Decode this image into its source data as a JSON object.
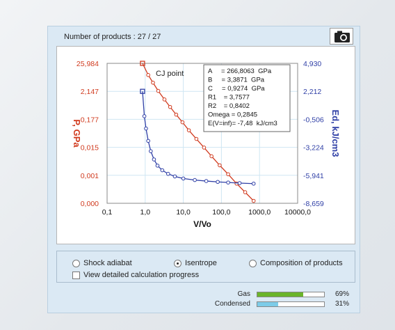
{
  "header": {
    "title": "Number of products : 27 / 27"
  },
  "icons": {
    "camera": "camera-icon"
  },
  "colors": {
    "pressure": "#d03a1e",
    "energy": "#2f3fa6",
    "gas": "#6ab42a",
    "condensed": "#7ccbe8",
    "panel": "#dbe9f4"
  },
  "chart_data": {
    "type": "line",
    "xlabel": "V/Vo",
    "ylabel_left": "P, GPa",
    "ylabel_right": "Ed, kJ/cm3",
    "x_scale": "log",
    "x_ticks": [
      "0,1",
      "1,0",
      "10,0",
      "100,0",
      "1000,0",
      "10000,0"
    ],
    "x_range": [
      0.1,
      10000
    ],
    "left_ticks": [
      "25,984",
      "2,147",
      "0,177",
      "0,015",
      "0,001",
      "0,000"
    ],
    "right_ticks": [
      "4,930",
      "2,212",
      "-0,506",
      "-3,224",
      "-5,941",
      "-8,659"
    ],
    "right_range": [
      -8.659,
      4.93
    ],
    "grid": true,
    "annotation": "CJ point",
    "params": [
      "A     = 266,8063  GPa",
      "B     = 3,3871  GPa",
      "C     = 0,9274  GPa",
      "R1    = 3,7577",
      "R2    = 0,8402",
      "Omega = 0,2845",
      "E(V=inf)= -7,48  kJ/cm3"
    ],
    "series": [
      {
        "name": "P, GPa",
        "axis": "left",
        "marker": "square",
        "points": [
          [
            0.85,
            25.984
          ],
          [
            1.2,
            9.5
          ],
          [
            1.6,
            4.9
          ],
          [
            2.2,
            2.4
          ],
          [
            3.2,
            1.15
          ],
          [
            4.5,
            0.6
          ],
          [
            6.5,
            0.31
          ],
          [
            9.5,
            0.16
          ],
          [
            14,
            0.08
          ],
          [
            22,
            0.038
          ],
          [
            35,
            0.018
          ],
          [
            55,
            0.0085
          ],
          [
            90,
            0.0039
          ],
          [
            150,
            0.0018
          ],
          [
            250,
            0.0008
          ],
          [
            420,
            0.00038
          ],
          [
            700,
            0.00018
          ]
        ]
      },
      {
        "name": "Ed, kJ/cm3",
        "axis": "right",
        "marker": "circle",
        "points": [
          [
            0.85,
            2.212
          ],
          [
            0.95,
            -0.2
          ],
          [
            1.05,
            -1.4
          ],
          [
            1.2,
            -2.6
          ],
          [
            1.4,
            -3.6
          ],
          [
            1.7,
            -4.4
          ],
          [
            2.1,
            -5.0
          ],
          [
            2.8,
            -5.45
          ],
          [
            4,
            -5.8
          ],
          [
            6,
            -6.05
          ],
          [
            10,
            -6.25
          ],
          [
            20,
            -6.4
          ],
          [
            40,
            -6.5
          ],
          [
            80,
            -6.58
          ],
          [
            150,
            -6.64
          ],
          [
            300,
            -6.7
          ],
          [
            700,
            -6.75
          ]
        ]
      }
    ]
  },
  "options": {
    "shock_adiabat": "Shock adiabat",
    "isentrope": "Isentrope",
    "composition": "Composition of products",
    "detailed_progress": "View detailed calculation progress",
    "selected": "isentrope"
  },
  "products": [
    {
      "label": "Gas",
      "percent_text": "69%",
      "fraction": 0.69
    },
    {
      "label": "Condensed",
      "percent_text": "31%",
      "fraction": 0.31
    }
  ]
}
